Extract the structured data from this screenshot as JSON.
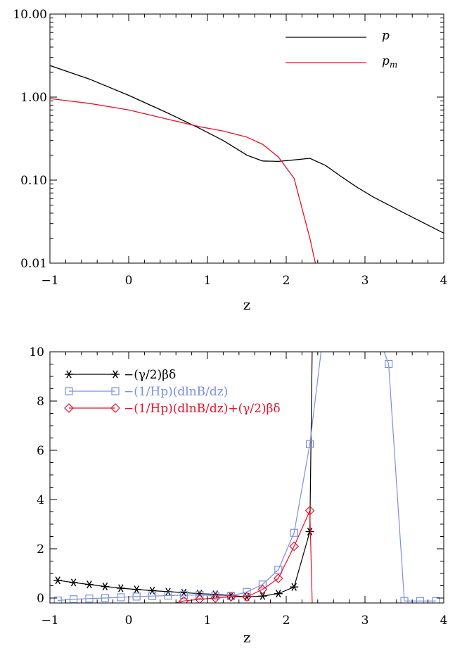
{
  "chart_data": [
    {
      "type": "line",
      "yscale": "log",
      "xlabel": "z",
      "ylabel": "",
      "xlim": [
        -1,
        4
      ],
      "ylim": [
        0.01,
        10
      ],
      "xticks": [
        -1,
        0,
        1,
        2,
        3,
        4
      ],
      "xtick_labels": [
        "−1",
        "0",
        "1",
        "2",
        "3",
        "4"
      ],
      "yticks": [
        0.01,
        0.1,
        1,
        10
      ],
      "ytick_labels": [
        "0.01",
        "0.10",
        "1.00",
        "10.00"
      ],
      "legend_position": "top-right",
      "series": [
        {
          "name": "p",
          "color": "#000000",
          "x": [
            -1.0,
            -0.5,
            0.0,
            0.5,
            0.9,
            1.2,
            1.5,
            1.7,
            1.9,
            2.1,
            2.3,
            2.5,
            2.7,
            2.9,
            3.1,
            3.5,
            4.0
          ],
          "y": [
            2.4,
            1.65,
            1.05,
            0.64,
            0.42,
            0.3,
            0.2,
            0.17,
            0.168,
            0.175,
            0.183,
            0.15,
            0.11,
            0.082,
            0.063,
            0.04,
            0.023
          ]
        },
        {
          "name": "pm",
          "color": "#e8102a",
          "x": [
            -1.0,
            -0.5,
            0.0,
            0.5,
            0.9,
            1.2,
            1.5,
            1.7,
            1.9,
            2.1,
            2.3,
            2.37
          ],
          "y": [
            0.96,
            0.84,
            0.7,
            0.54,
            0.44,
            0.39,
            0.33,
            0.27,
            0.19,
            0.105,
            0.02,
            0.01
          ]
        }
      ]
    },
    {
      "type": "line",
      "xlabel": "z",
      "ylabel": "",
      "xlim": [
        -1,
        4
      ],
      "ylim": [
        -0.2,
        10
      ],
      "xticks": [
        -1,
        0,
        1,
        2,
        3,
        4
      ],
      "xtick_labels": [
        "−1",
        "0",
        "1",
        "2",
        "3",
        "4"
      ],
      "yticks": [
        0,
        2,
        4,
        6,
        8,
        10
      ],
      "ytick_labels": [
        "0",
        "2",
        "4",
        "6",
        "8",
        "10"
      ],
      "legend_position": "top-left",
      "series": [
        {
          "name": "−(γ/2)βδ",
          "color": "#000000",
          "marker": "asterisk",
          "x": [
            -0.9,
            -0.7,
            -0.5,
            -0.3,
            -0.1,
            0.1,
            0.3,
            0.5,
            0.7,
            0.9,
            1.1,
            1.3,
            1.5,
            1.7,
            1.9,
            2.1,
            2.3
          ],
          "y": [
            0.72,
            0.63,
            0.55,
            0.47,
            0.4,
            0.35,
            0.3,
            0.26,
            0.22,
            0.18,
            0.15,
            0.1,
            0.05,
            0.08,
            0.18,
            0.45,
            2.7
          ],
          "line_extension": {
            "x": [
              2.3,
              2.33
            ],
            "y": [
              2.7,
              10.2
            ]
          }
        },
        {
          "name": "−(1/Hp)(dlnB/dz)",
          "color": "#7b8fe0",
          "marker": "square",
          "x": [
            -0.9,
            -0.7,
            -0.5,
            -0.3,
            -0.1,
            0.1,
            0.3,
            0.5,
            0.7,
            0.9,
            1.1,
            1.3,
            1.5,
            1.7,
            1.9,
            2.1,
            2.3,
            3.3,
            3.5,
            3.7,
            3.9
          ],
          "y": [
            -0.1,
            -0.05,
            -0.02,
            0.0,
            0.03,
            0.06,
            0.08,
            0.1,
            0.12,
            0.12,
            0.1,
            0.08,
            0.25,
            0.55,
            1.15,
            2.65,
            6.25,
            9.5,
            -0.12,
            -0.12,
            -0.12
          ],
          "line_extension": {
            "x": [
              2.3,
              2.45
            ],
            "y": [
              6.25,
              10.2
            ]
          },
          "line_entry": {
            "x": [
              3.22,
              3.3
            ],
            "y": [
              10.2,
              9.5
            ]
          }
        },
        {
          "name": "−(1/Hp)(dlnB/dz)+(γ/2)βδ",
          "color": "#e8102a",
          "marker": "diamond",
          "x": [
            0.7,
            0.9,
            1.1,
            1.3,
            1.5,
            1.7,
            1.9,
            2.1,
            2.3
          ],
          "y": [
            -0.12,
            -0.05,
            0.0,
            0.05,
            0.05,
            0.35,
            0.8,
            2.1,
            3.55
          ],
          "line_entry": {
            "x": [
              0.6,
              0.7
            ],
            "y": [
              -0.2,
              -0.12
            ]
          },
          "line_extension": {
            "x": [
              2.3,
              2.33
            ],
            "y": [
              3.55,
              -0.2
            ]
          }
        }
      ]
    }
  ]
}
